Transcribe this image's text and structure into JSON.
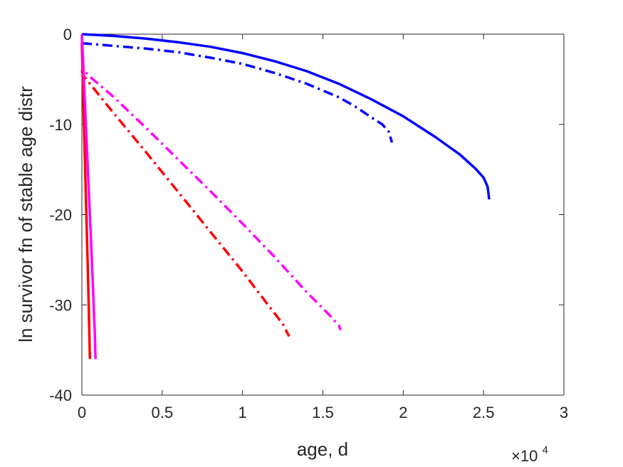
{
  "chart_data": {
    "type": "line",
    "title": "",
    "xlabel": "age, d",
    "ylabel": "ln survivor fn of stable age distr",
    "x_multiplier_text": "×10",
    "x_multiplier_exponent": "4",
    "xlim": [
      0,
      30000
    ],
    "ylim": [
      -40,
      0
    ],
    "xticks": [
      0,
      5000,
      10000,
      15000,
      20000,
      25000,
      30000
    ],
    "xtick_labels": [
      "0",
      "0.5",
      "1",
      "1.5",
      "2",
      "2.5",
      "3"
    ],
    "yticks": [
      0,
      -10,
      -20,
      -30,
      -40
    ],
    "ytick_labels": [
      "0",
      "-10",
      "-20",
      "-30",
      "-40"
    ],
    "grid": false,
    "series": [
      {
        "color": "#0000ff",
        "style": "solid",
        "x": [
          0,
          2000,
          4000,
          6000,
          8000,
          10000,
          12000,
          14000,
          16000,
          18000,
          20000,
          22000,
          23500,
          24500,
          25000,
          25250,
          25350
        ],
        "y": [
          0,
          -0.2,
          -0.5,
          -0.9,
          -1.4,
          -2.1,
          -3.0,
          -4.1,
          -5.5,
          -7.2,
          -9.1,
          -11.4,
          -13.3,
          -14.9,
          -15.9,
          -16.9,
          -18.3
        ]
      },
      {
        "color": "#0000ff",
        "style": "dashdot",
        "x": [
          0,
          2000,
          4000,
          6000,
          8000,
          10000,
          12000,
          14000,
          16000,
          17000,
          18000,
          18700,
          19100,
          19300
        ],
        "y": [
          -1.0,
          -1.3,
          -1.6,
          -2.0,
          -2.6,
          -3.3,
          -4.3,
          -5.5,
          -7.0,
          -8.0,
          -9.2,
          -10.0,
          -10.8,
          -12.0
        ]
      },
      {
        "color": "#ff00ff",
        "style": "dashdot",
        "x": [
          0,
          100,
          500,
          2000,
          4000,
          6000,
          8000,
          10000,
          12000,
          14000,
          15500,
          16000,
          16100
        ],
        "y": [
          -0.5,
          -4.0,
          -4.7,
          -7.0,
          -10.4,
          -13.9,
          -17.4,
          -21.0,
          -24.7,
          -28.6,
          -31.3,
          -32.3,
          -32.8
        ]
      },
      {
        "color": "#ff0000",
        "style": "dashdot",
        "x": [
          0,
          100,
          500,
          2000,
          4000,
          6000,
          8000,
          10000,
          11500,
          12500,
          12900
        ],
        "y": [
          -4.0,
          -4.6,
          -5.5,
          -8.8,
          -13.1,
          -17.5,
          -21.9,
          -26.3,
          -29.8,
          -32.1,
          -33.5
        ]
      },
      {
        "color": "#ff0000",
        "style": "solid",
        "x": [
          0,
          100,
          250,
          400,
          500
        ],
        "y": [
          -1.0,
          -8.0,
          -18.0,
          -28.0,
          -36.0
        ]
      },
      {
        "color": "#ff00ff",
        "style": "solid",
        "x": [
          0,
          200,
          400,
          600,
          800,
          850
        ],
        "y": [
          0,
          -8.0,
          -16.0,
          -24.0,
          -33.0,
          -36.0
        ]
      }
    ]
  }
}
